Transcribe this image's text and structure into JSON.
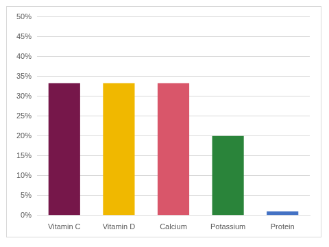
{
  "chart_data": {
    "type": "bar",
    "categories": [
      "Vitamin C",
      "Vitamin D",
      "Calcium",
      "Potassium",
      "Protein"
    ],
    "values": [
      33.3,
      33.3,
      33.3,
      20,
      1
    ],
    "colors": [
      "#76174a",
      "#f0b800",
      "#d9566a",
      "#2a843a",
      "#4472c4"
    ],
    "ylim": [
      0,
      50
    ],
    "yticks": [
      {
        "value": 0,
        "label": "0%"
      },
      {
        "value": 5,
        "label": "5%"
      },
      {
        "value": 10,
        "label": "10%"
      },
      {
        "value": 15,
        "label": "15%"
      },
      {
        "value": 20,
        "label": "20%"
      },
      {
        "value": 25,
        "label": "25%"
      },
      {
        "value": 30,
        "label": "30%"
      },
      {
        "value": 35,
        "label": "35%"
      },
      {
        "value": 40,
        "label": "40%"
      },
      {
        "value": 45,
        "label": "45%"
      },
      {
        "value": 50,
        "label": "50%"
      }
    ],
    "grid": true
  }
}
